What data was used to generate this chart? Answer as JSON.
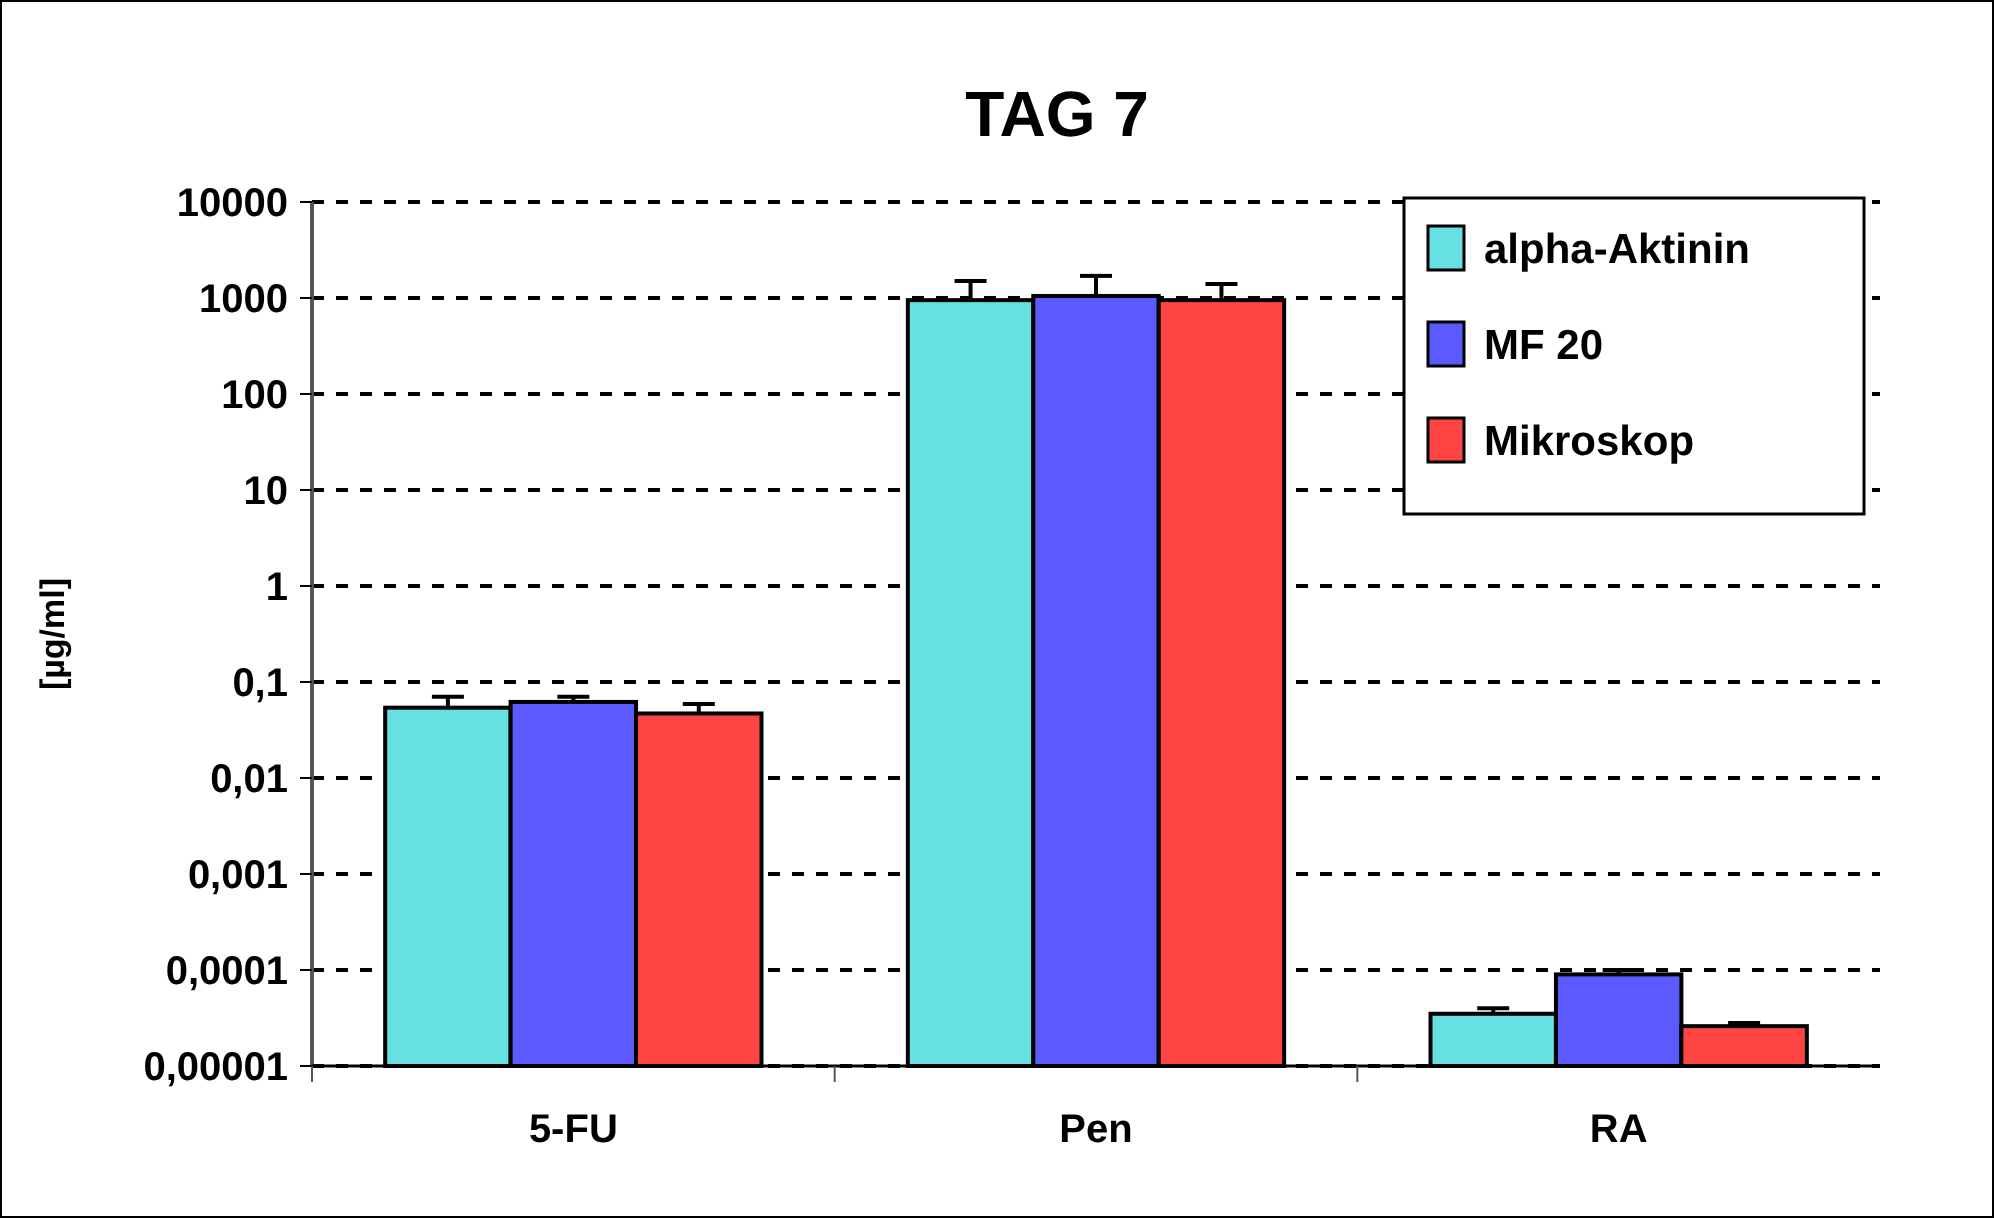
{
  "chart_data": {
    "type": "bar",
    "title": "TAG 7",
    "ylabel": "[µg/ml]",
    "categories": [
      "5-FU",
      "Pen",
      "RA"
    ],
    "series": [
      {
        "name": "alpha-Aktinin",
        "color": "#66e0e0",
        "values": [
          0.054,
          950,
          3.5e-05
        ],
        "errors": [
          [
            0.054,
            0.07
          ],
          [
            950,
            1500
          ],
          [
            3.5e-05,
            4e-05
          ]
        ]
      },
      {
        "name": "MF 20",
        "color": "#5a5aff",
        "values": [
          0.062,
          1050,
          9e-05
        ],
        "errors": [
          [
            0.062,
            0.07
          ],
          [
            1050,
            1700
          ],
          [
            9e-05,
            0.0001
          ]
        ]
      },
      {
        "name": "Mikroskop",
        "color": "#ff4444",
        "values": [
          0.047,
          950,
          2.6e-05
        ],
        "errors": [
          [
            0.047,
            0.059
          ],
          [
            950,
            1400
          ],
          [
            2.6e-05,
            2.8e-05
          ]
        ]
      }
    ],
    "log": true,
    "ylim": [
      1e-05,
      10000
    ],
    "yticks": [
      {
        "value": 1e-05,
        "label": "0,00001"
      },
      {
        "value": 0.0001,
        "label": "0,0001"
      },
      {
        "value": 0.001,
        "label": "0,001"
      },
      {
        "value": 0.01,
        "label": "0,01"
      },
      {
        "value": 0.1,
        "label": "0,1"
      },
      1,
      10,
      100,
      1000,
      10000
    ],
    "grid": "y",
    "legend": "top right"
  }
}
